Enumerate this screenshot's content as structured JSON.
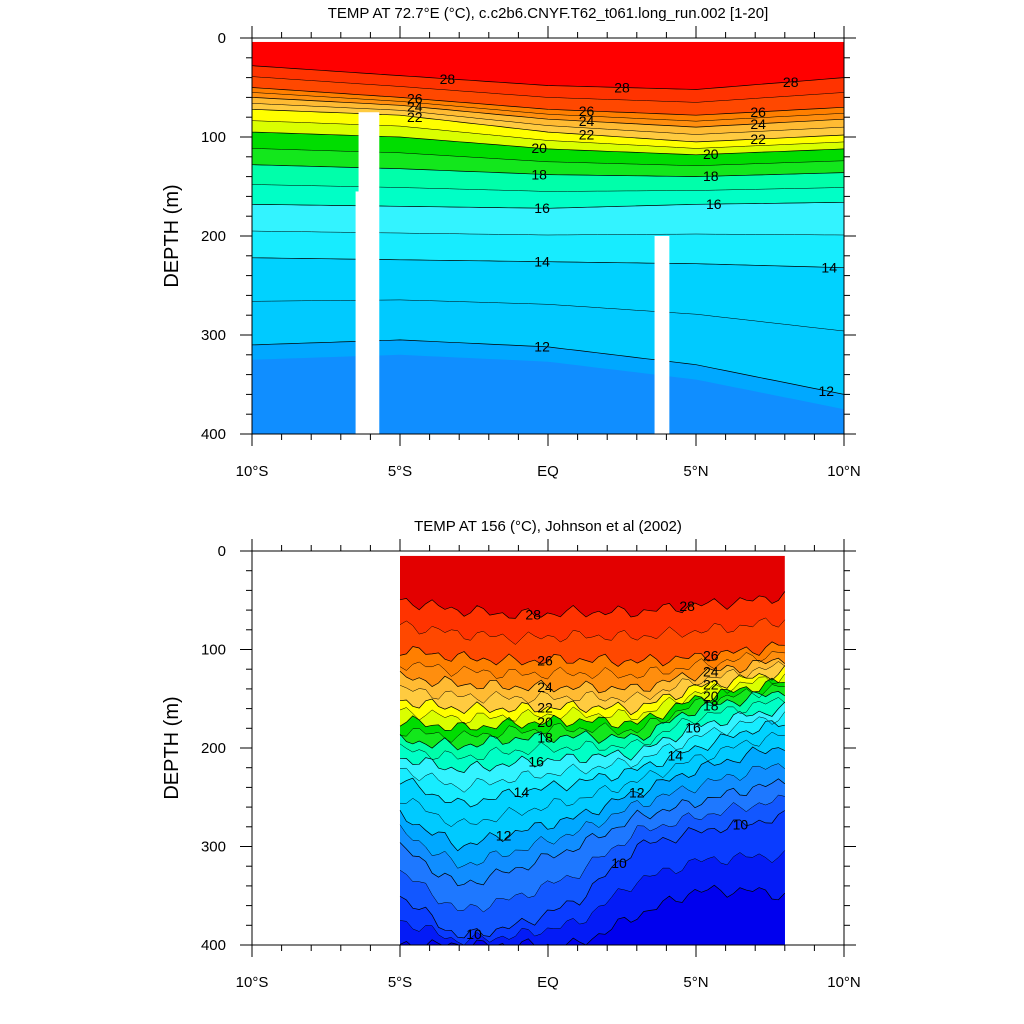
{
  "chart_data": [
    {
      "type": "contour",
      "title": "TEMP AT  72.7°E (°C), c.c2b6.CNYF.T62_t061.long_run.002 [1-20]",
      "ylabel": "DEPTH (m)",
      "xlim": [
        -10,
        10
      ],
      "ylim": [
        400,
        0
      ],
      "x_ticks": [
        "10°S",
        "5°S",
        "EQ",
        "5°N",
        "10°N"
      ],
      "y_ticks": [
        "0",
        "100",
        "200",
        "300",
        "400"
      ],
      "data_extent_x": [
        -10,
        10
      ],
      "contour_labels": [
        "28",
        "28",
        "28",
        "26",
        "24",
        "22",
        "26",
        "24",
        "22",
        "26",
        "24",
        "22",
        "20",
        "20",
        "18",
        "18",
        "16",
        "16",
        "14",
        "14",
        "12",
        "12"
      ],
      "isotherms": [
        {
          "value": 28,
          "x": [
            -10,
            -5,
            0,
            5,
            10
          ],
          "depth": [
            28,
            38,
            48,
            52,
            40
          ]
        },
        {
          "value": 26,
          "x": [
            -10,
            -5,
            0,
            5,
            10
          ],
          "depth": [
            50,
            60,
            72,
            78,
            70
          ]
        },
        {
          "value": 24,
          "x": [
            -10,
            -5,
            0,
            5,
            10
          ],
          "depth": [
            60,
            68,
            82,
            90,
            82
          ]
        },
        {
          "value": 22,
          "x": [
            -10,
            -5,
            0,
            5,
            10
          ],
          "depth": [
            72,
            78,
            95,
            105,
            98
          ]
        },
        {
          "value": 20,
          "x": [
            -10,
            -5,
            0,
            5,
            10
          ],
          "depth": [
            95,
            100,
            112,
            118,
            112
          ]
        },
        {
          "value": 18,
          "x": [
            -10,
            -5,
            0,
            5,
            10
          ],
          "depth": [
            128,
            132,
            138,
            140,
            136
          ]
        },
        {
          "value": 16,
          "x": [
            -10,
            -5,
            0,
            5,
            10
          ],
          "depth": [
            168,
            170,
            172,
            168,
            166
          ]
        },
        {
          "value": 14,
          "x": [
            -10,
            -5,
            0,
            5,
            10
          ],
          "depth": [
            222,
            224,
            226,
            228,
            232
          ]
        },
        {
          "value": 12,
          "x": [
            -10,
            -5,
            0,
            5,
            10
          ],
          "depth": [
            310,
            305,
            312,
            330,
            360
          ]
        }
      ],
      "masked_columns": [
        {
          "x": [
            -6.4,
            -5.7
          ],
          "depth_top": 75
        },
        {
          "x": [
            -6.5,
            -6.2
          ],
          "depth_top": 155
        },
        {
          "x": [
            3.6,
            4.1
          ],
          "depth_top": 200
        }
      ]
    },
    {
      "type": "contour",
      "title": "TEMP AT 156 (°C), Johnson et al (2002)",
      "ylabel": "DEPTH (m)",
      "xlim": [
        -10,
        10
      ],
      "ylim": [
        400,
        0
      ],
      "x_ticks": [
        "10°S",
        "5°S",
        "EQ",
        "5°N",
        "10°N"
      ],
      "y_ticks": [
        "0",
        "100",
        "200",
        "300",
        "400"
      ],
      "data_extent_x": [
        -5,
        8
      ],
      "contour_labels": [
        "28",
        "28",
        "26",
        "24",
        "22",
        "20",
        "18",
        "26",
        "24",
        "22",
        "20",
        "18",
        "16",
        "16",
        "14",
        "14",
        "12",
        "12",
        "10",
        "10",
        "10"
      ],
      "isotherms": [
        {
          "value": 28,
          "x": [
            -5,
            -3,
            -1,
            1,
            3,
            5,
            7,
            8
          ],
          "depth": [
            50,
            60,
            65,
            62,
            62,
            55,
            50,
            45
          ]
        },
        {
          "value": 26,
          "x": [
            -5,
            -3,
            -1,
            1,
            3,
            5,
            7,
            8
          ],
          "depth": [
            100,
            108,
            112,
            110,
            112,
            108,
            100,
            95
          ]
        },
        {
          "value": 24,
          "x": [
            -5,
            -3,
            -1,
            1,
            3,
            5,
            7,
            8
          ],
          "depth": [
            128,
            135,
            138,
            138,
            140,
            125,
            115,
            110
          ]
        },
        {
          "value": 22,
          "x": [
            -5,
            -3,
            -1,
            1,
            3,
            5,
            7,
            8
          ],
          "depth": [
            152,
            160,
            160,
            158,
            160,
            138,
            128,
            122
          ]
        },
        {
          "value": 20,
          "x": [
            -5,
            -3,
            -1,
            1,
            3,
            5,
            7,
            8
          ],
          "depth": [
            172,
            180,
            175,
            172,
            175,
            150,
            138,
            132
          ]
        },
        {
          "value": 18,
          "x": [
            -5,
            -3,
            -1,
            1,
            3,
            5,
            7,
            8
          ],
          "depth": [
            192,
            198,
            190,
            188,
            190,
            160,
            148,
            142
          ]
        },
        {
          "value": 16,
          "x": [
            -5,
            -3,
            -1,
            1,
            3,
            5,
            7,
            8
          ],
          "depth": [
            210,
            222,
            215,
            210,
            205,
            178,
            165,
            160
          ]
        },
        {
          "value": 14,
          "x": [
            -5,
            -3,
            -1,
            1,
            3,
            5,
            7,
            8
          ],
          "depth": [
            232,
            258,
            245,
            235,
            222,
            200,
            180,
            175
          ]
        },
        {
          "value": 12,
          "x": [
            -5,
            -3,
            -1,
            1,
            3,
            5,
            7,
            8
          ],
          "depth": [
            268,
            300,
            285,
            270,
            245,
            222,
            205,
            198
          ]
        },
        {
          "value": 11,
          "x": [
            -5,
            -3,
            -1,
            1,
            3,
            5,
            7,
            8
          ],
          "depth": [
            300,
            340,
            322,
            300,
            270,
            255,
            240,
            235
          ]
        },
        {
          "value": 10,
          "x": [
            -5,
            -3,
            -1,
            1,
            3,
            5,
            7,
            8
          ],
          "depth": [
            350,
            392,
            380,
            355,
            300,
            285,
            275,
            270
          ]
        },
        {
          "value": 9,
          "x": [
            -5,
            -3,
            -1,
            1,
            3,
            5,
            7,
            8
          ],
          "depth": [
            400,
            400,
            400,
            400,
            370,
            345,
            345,
            350
          ]
        }
      ]
    }
  ]
}
